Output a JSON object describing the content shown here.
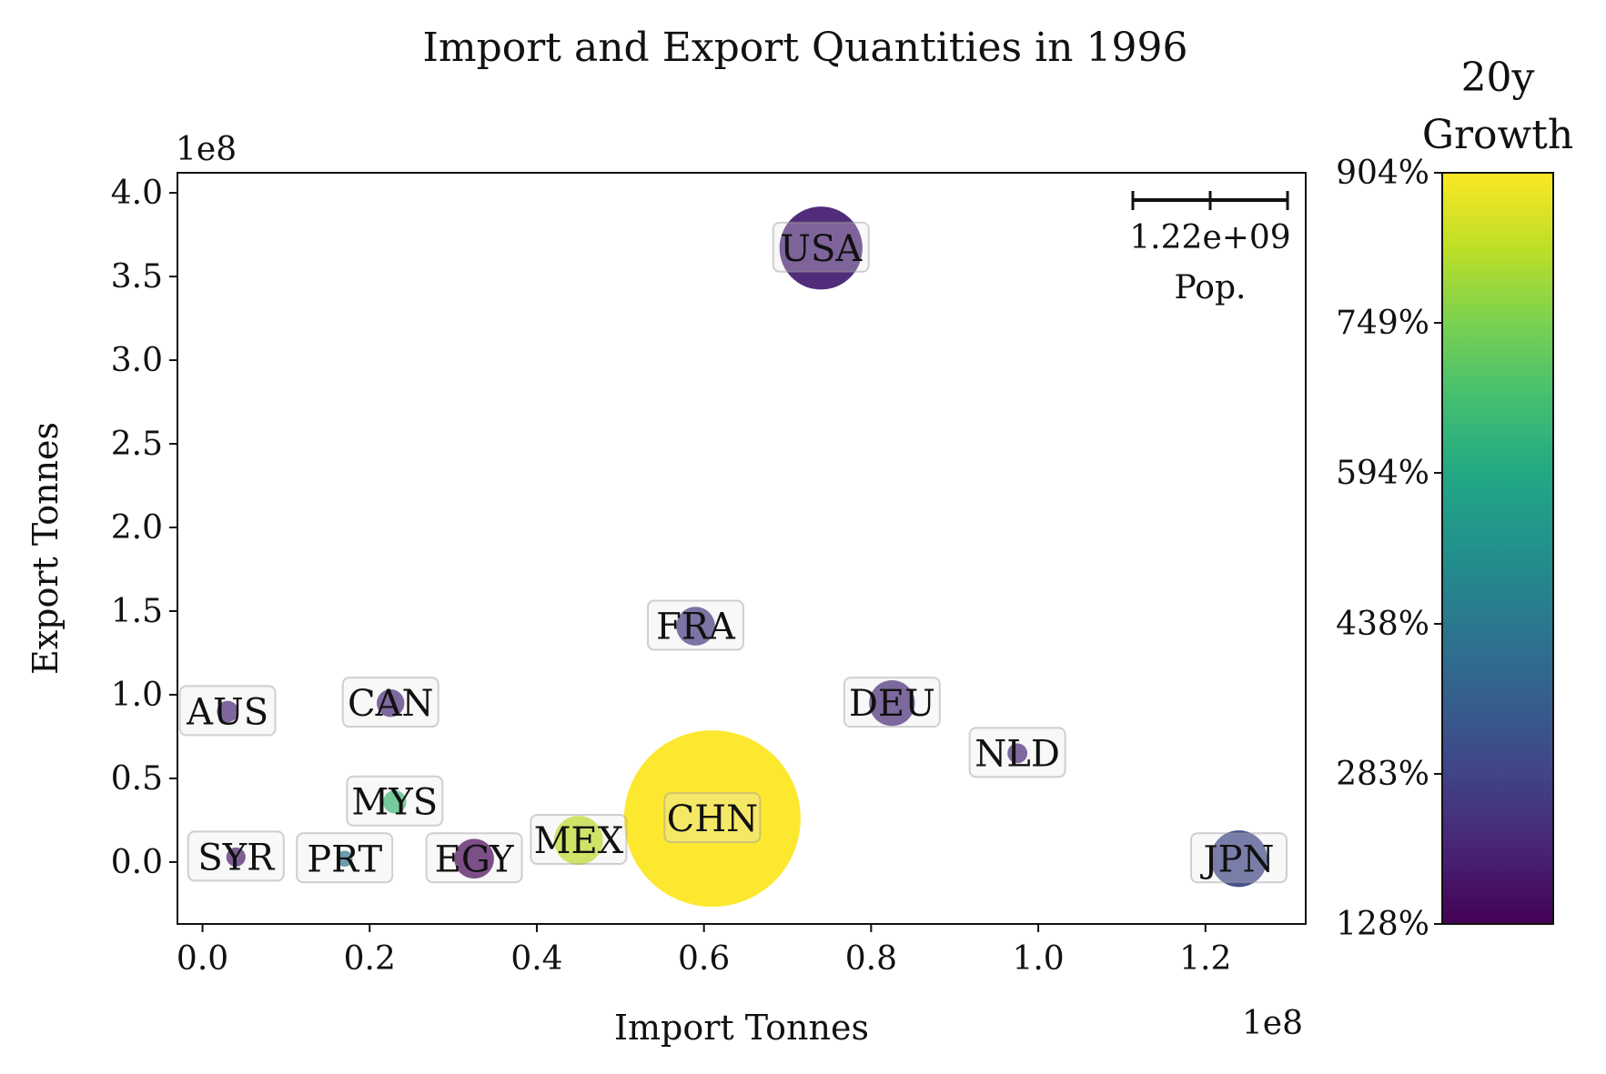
{
  "chart_data": {
    "type": "scatter",
    "title": "Import and Export Quantities in 1996",
    "xlabel": "Import Tonnes",
    "ylabel": "Export Tonnes",
    "x_offset_label": "1e8",
    "y_offset_label": "1e8",
    "xlim": [
      -0.03,
      1.32
    ],
    "ylim": [
      -0.37,
      4.12
    ],
    "x_ticks": [
      0.0,
      0.2,
      0.4,
      0.6,
      0.8,
      1.0,
      1.2
    ],
    "x_tick_labels": [
      "0.0",
      "0.2",
      "0.4",
      "0.6",
      "0.8",
      "1.0",
      "1.2"
    ],
    "y_ticks": [
      0.0,
      0.5,
      1.0,
      1.5,
      2.0,
      2.5,
      3.0,
      3.5,
      4.0
    ],
    "y_tick_labels": [
      "0.0",
      "0.5",
      "1.0",
      "1.5",
      "2.0",
      "2.5",
      "3.0",
      "3.5",
      "4.0"
    ],
    "size_legend": {
      "value_label": "1.22e+09",
      "unit_label": "Pop."
    },
    "colorbar": {
      "title_line1": "20y",
      "title_line2": "Growth",
      "colormap": "viridis",
      "range": [
        128,
        904
      ],
      "ticks": [
        128,
        283,
        438,
        594,
        749,
        904
      ],
      "tick_labels": [
        "128%",
        "283%",
        "438%",
        "594%",
        "749%",
        "904%"
      ]
    },
    "points": [
      {
        "label": "USA",
        "x": 0.74,
        "y": 3.67,
        "growth": 200,
        "pop": 0.27
      },
      {
        "label": "FRA",
        "x": 0.59,
        "y": 1.41,
        "growth": 260,
        "pop": 0.059
      },
      {
        "label": "AUS",
        "x": 0.03,
        "y": 0.9,
        "growth": 210,
        "pop": 0.018
      },
      {
        "label": "CAN",
        "x": 0.225,
        "y": 0.95,
        "growth": 215,
        "pop": 0.03
      },
      {
        "label": "DEU",
        "x": 0.825,
        "y": 0.95,
        "growth": 215,
        "pop": 0.082
      },
      {
        "label": "NLD",
        "x": 0.975,
        "y": 0.65,
        "growth": 210,
        "pop": 0.0155
      },
      {
        "label": "MYS",
        "x": 0.23,
        "y": 0.36,
        "growth": 650,
        "pop": 0.021
      },
      {
        "label": "CHN",
        "x": 0.61,
        "y": 0.26,
        "growth": 904,
        "pop": 1.22
      },
      {
        "label": "MEX",
        "x": 0.45,
        "y": 0.13,
        "growth": 830,
        "pop": 0.094
      },
      {
        "label": "SYR",
        "x": 0.04,
        "y": 0.03,
        "growth": 180,
        "pop": 0.0145
      },
      {
        "label": "PRT",
        "x": 0.17,
        "y": 0.02,
        "growth": 430,
        "pop": 0.01
      },
      {
        "label": "EGY",
        "x": 0.325,
        "y": 0.02,
        "growth": 128,
        "pop": 0.062
      },
      {
        "label": "JPN",
        "x": 1.24,
        "y": 0.02,
        "growth": 295,
        "pop": 0.126
      }
    ]
  }
}
